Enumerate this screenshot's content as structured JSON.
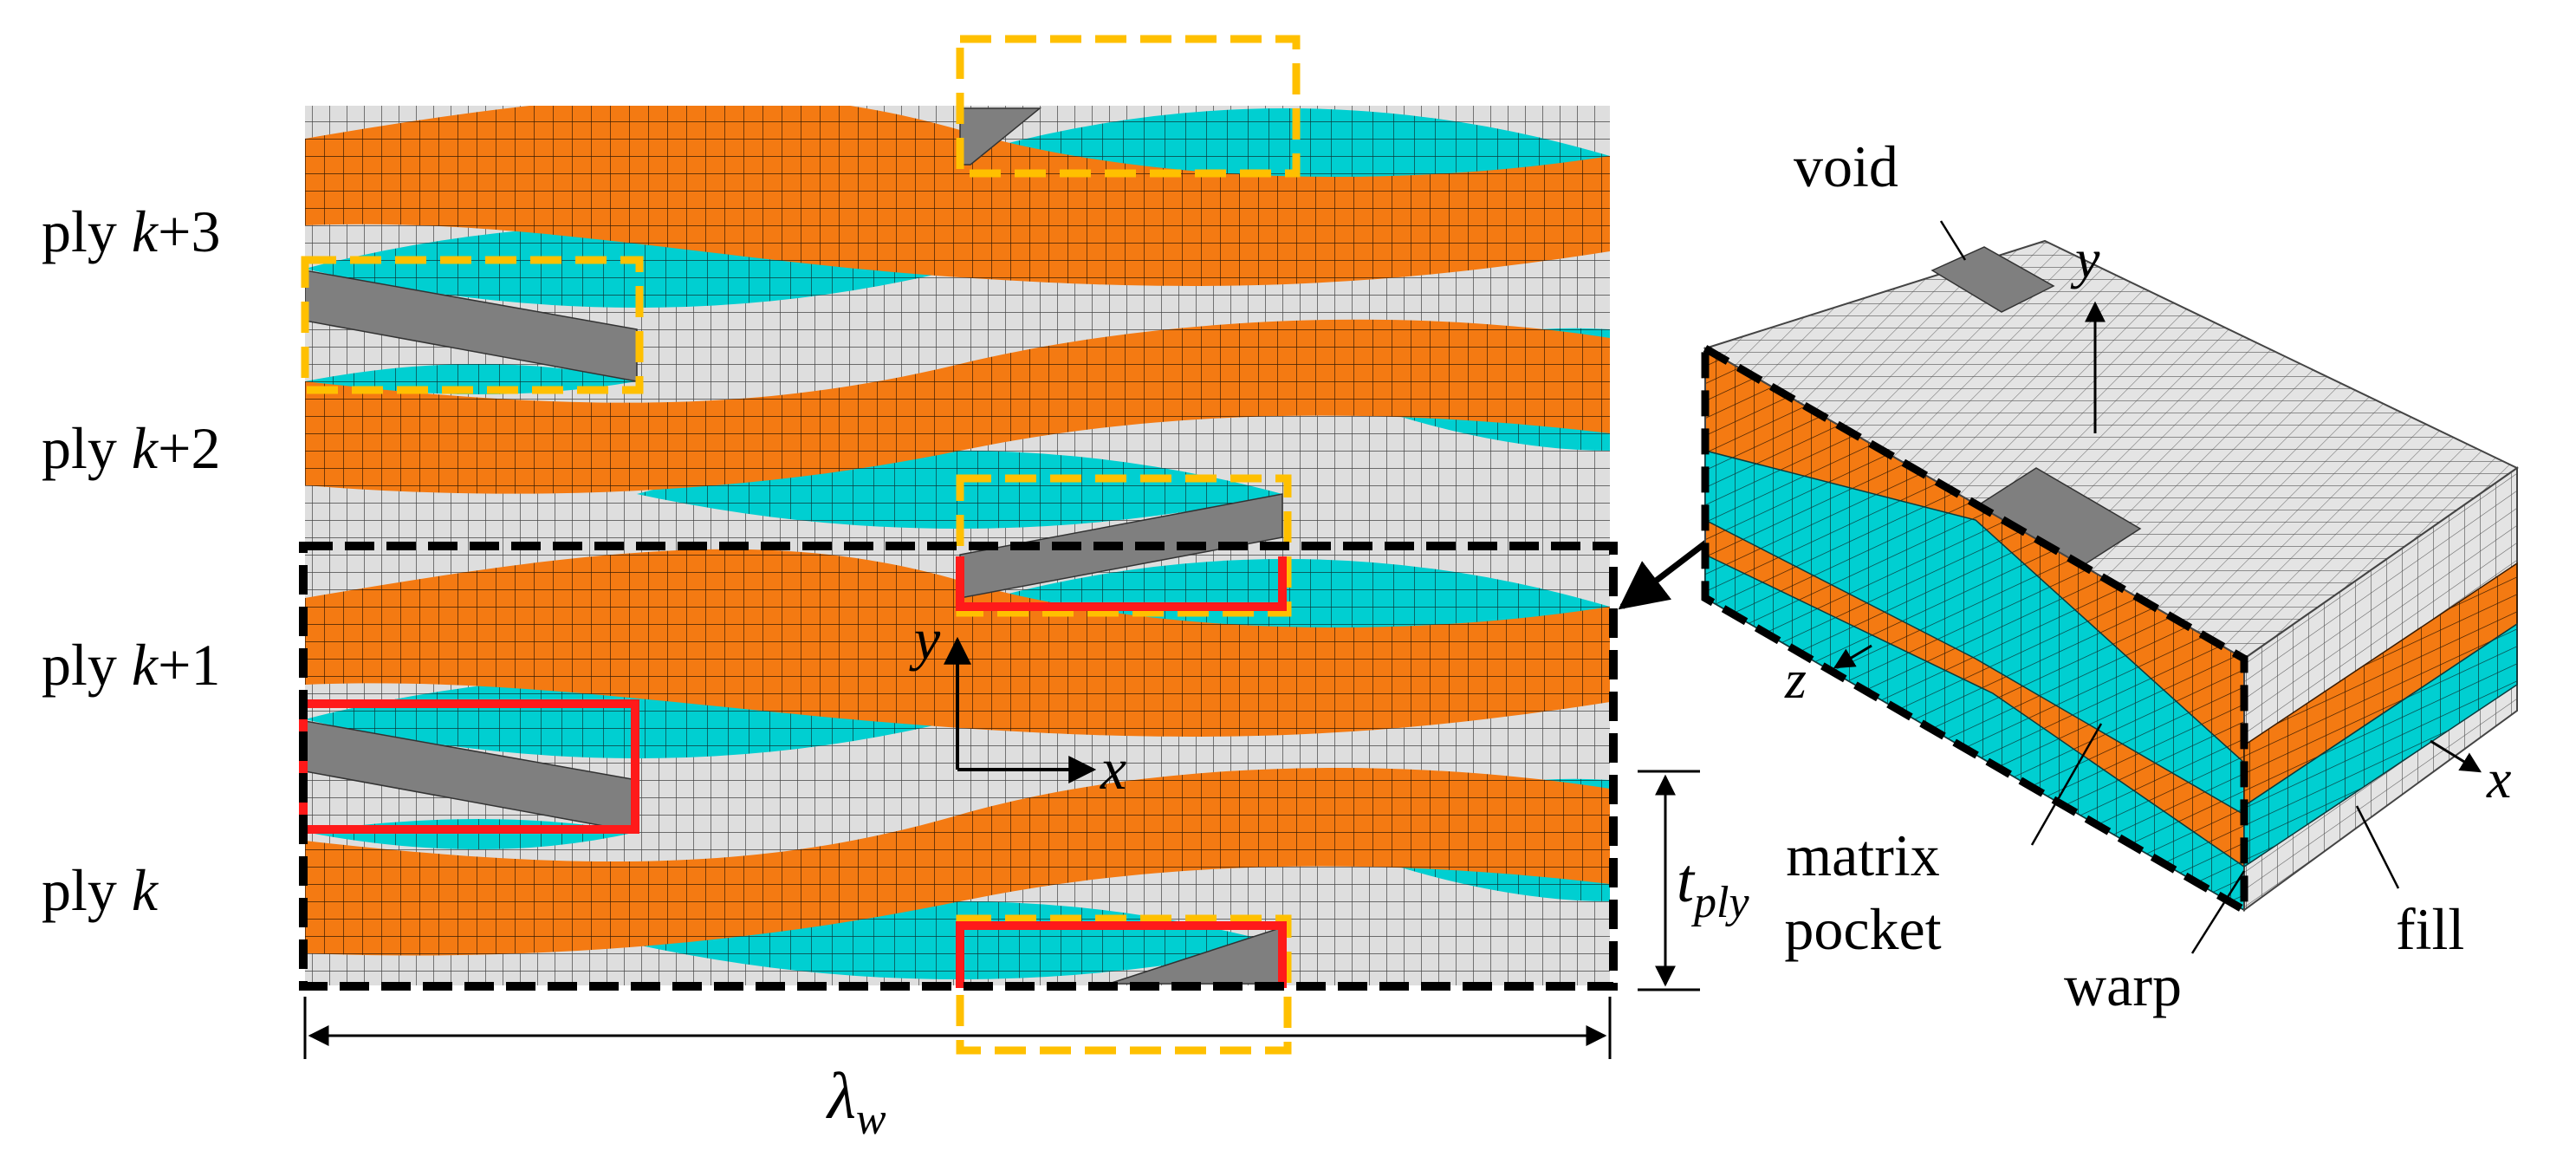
{
  "figure": {
    "ply_labels": [
      {
        "prefix": "ply ",
        "index": "k",
        "suffix": "+3"
      },
      {
        "prefix": "ply ",
        "index": "k",
        "suffix": "+2"
      },
      {
        "prefix": "ply ",
        "index": "k",
        "suffix": "+1"
      },
      {
        "prefix": "ply ",
        "index": "k",
        "suffix": ""
      }
    ],
    "axes_2d": {
      "y": "y",
      "x": "x"
    },
    "dimension_thickness": {
      "base": "t",
      "subscript": "ply"
    },
    "dimension_wavelength": {
      "base": "λ",
      "subscript": "w"
    },
    "block_3d": {
      "void": "void",
      "matrix_pocket_line1": "matrix",
      "matrix_pocket_line2": "pocket",
      "warp": "warp",
      "fill": "fill",
      "axis_x": "x",
      "axis_y": "y",
      "axis_z": "z"
    },
    "colors": {
      "warp": "#f47a12",
      "fill": "#00cfd1",
      "matrix": "#dadada",
      "void": "#7f7f7f",
      "highlight_dashed": "#ffc000",
      "highlight_solid": "#ff1a1a",
      "rve_border": "#000000"
    }
  }
}
